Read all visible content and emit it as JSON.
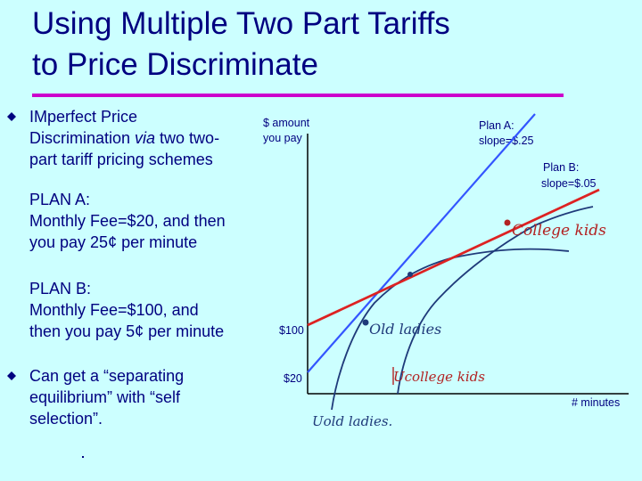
{
  "title": {
    "line1": "Using Multiple Two Part Tariffs",
    "line2": "to Price Discriminate"
  },
  "bullets": {
    "b1_line1": "IMperfect Price",
    "b1_line2_a": "Discrimination ",
    "b1_line2_via": "via",
    "b1_line2_b": " two two-",
    "b1_line3": "part tariff pricing schemes",
    "planA_line1": "PLAN A:",
    "planA_line2": "Monthly Fee=$20, and then",
    "planA_line3": "you pay 25¢ per minute",
    "planB_line1": "PLAN B:",
    "planB_line2": "Monthly Fee=$100, and",
    "planB_line3": "then you pay 5¢ per minute",
    "b2_line1": "Can get a “separating",
    "b2_line2": "equilibrium” with “self",
    "b2_line3": "selection”."
  },
  "diagram": {
    "y_axis_label_1": "$ amount",
    "y_axis_label_2": "you pay",
    "x_axis_label": "# minutes",
    "planA_label_1": "Plan A:",
    "planA_label_2": "slope=$.25",
    "planB_label_1": "Plan B:",
    "planB_label_2": "slope=$.05",
    "fee_100": "$100",
    "fee_20": "$20",
    "hand_college_kids": "College kids",
    "hand_old_ladies": "Old ladies",
    "hand_u_college_kids": "Ucollege kids",
    "hand_u_old_ladies": "Uold ladies."
  },
  "colors": {
    "background": "#CCFFFF",
    "text": "#000080",
    "accent_rule": "#CC00CC",
    "plan_a_line": "#3355FF",
    "plan_b_line": "#DD2222"
  }
}
